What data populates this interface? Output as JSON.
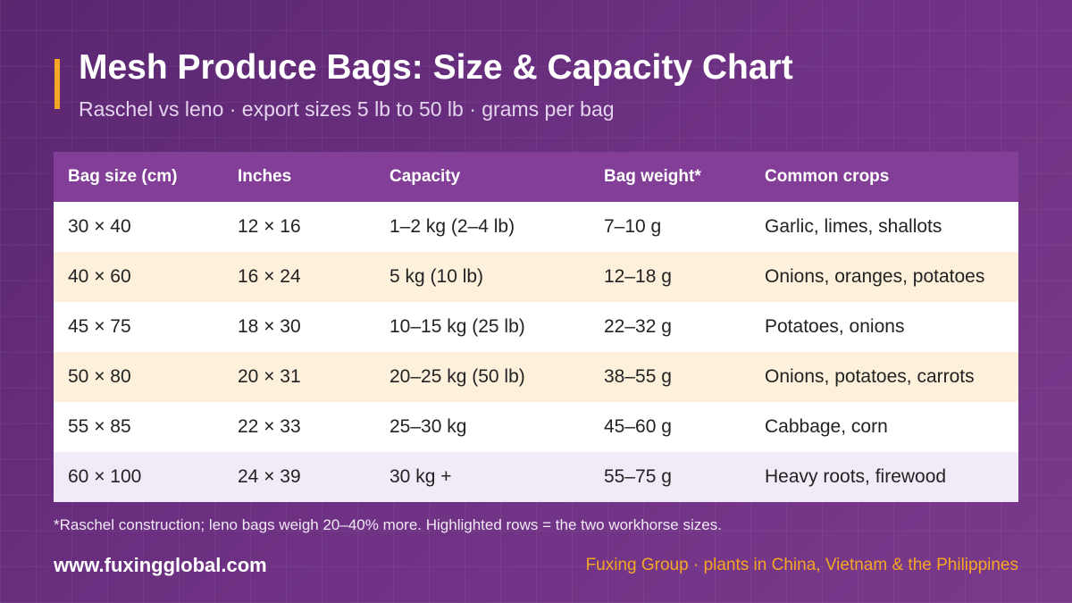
{
  "header": {
    "title": "Mesh Produce Bags: Size & Capacity Chart",
    "subtitle": "Raschel vs leno · export sizes 5 lb to 50 lb · grams per bag"
  },
  "table": {
    "columns": [
      "Bag size (cm)",
      "Inches",
      "Capacity",
      "Bag weight*",
      "Common crops"
    ],
    "rows": [
      [
        "30 × 40",
        "12 × 16",
        "1–2 kg (2–4 lb)",
        "7–10 g",
        "Garlic, limes, shallots"
      ],
      [
        "40 × 60",
        "16 × 24",
        "5 kg (10 lb)",
        "12–18 g",
        "Onions, oranges, potatoes"
      ],
      [
        "45 × 75",
        "18 × 30",
        "10–15 kg (25 lb)",
        "22–32 g",
        "Potatoes, onions"
      ],
      [
        "50 × 80",
        "20 × 31",
        "20–25 kg (50 lb)",
        "38–55 g",
        "Onions, potatoes, carrots"
      ],
      [
        "55 × 85",
        "22 × 33",
        "25–30 kg",
        "45–60 g",
        "Cabbage, corn"
      ],
      [
        "60 × 100",
        "24 × 39",
        "30 kg +",
        "55–75 g",
        "Heavy roots, firewood"
      ]
    ]
  },
  "footnote": "*Raschel construction; leno bags weigh 20–40% more. Highlighted rows = the two workhorse sizes.",
  "footer": {
    "url": "www.fuxingglobal.com",
    "tagline": "Fuxing Group · plants in China, Vietnam & the Philippines"
  }
}
